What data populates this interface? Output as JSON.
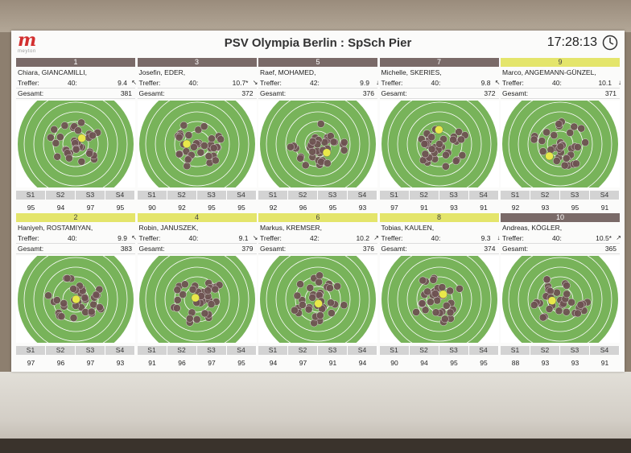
{
  "header": {
    "title": "PSV Olympia Berlin : SpSch Pier",
    "time": "17:28:13",
    "logo_letter": "m",
    "logo_text": "meyton"
  },
  "series_labels": [
    "S1",
    "S2",
    "S3",
    "S4"
  ],
  "hit_label": "Treffer:",
  "total_label": "Gesamt:",
  "panels": [
    {
      "lane": "1",
      "name": "Chiara, GIANCAMILLI,",
      "hits": "40:",
      "last": "9.4",
      "trend": "↖",
      "total": "381",
      "scores": [
        "95",
        "94",
        "97",
        "95"
      ],
      "highlight": false
    },
    {
      "lane": "3",
      "name": "Josefin, EDER,",
      "hits": "40:",
      "last": "10.7*",
      "trend": "↘",
      "total": "372",
      "scores": [
        "90",
        "92",
        "95",
        "95"
      ],
      "highlight": false
    },
    {
      "lane": "5",
      "name": "Raef, MOHAMED,",
      "hits": "42:",
      "last": "9.9",
      "trend": "↓",
      "total": "376",
      "scores": [
        "92",
        "96",
        "95",
        "93"
      ],
      "highlight": false
    },
    {
      "lane": "7",
      "name": "Michelle, SKERIES,",
      "hits": "40:",
      "last": "9.8",
      "trend": "↖",
      "total": "372",
      "scores": [
        "97",
        "91",
        "93",
        "91"
      ],
      "highlight": false
    },
    {
      "lane": "9",
      "name": "Marco, ANGEMANN-GÜNZEL,",
      "hits": "40:",
      "last": "10.1",
      "trend": "↓",
      "total": "371",
      "scores": [
        "92",
        "93",
        "95",
        "91"
      ],
      "highlight": true
    },
    {
      "lane": "2",
      "name": "Haniyeh, ROSTAMIYAN,",
      "hits": "40:",
      "last": "9.9",
      "trend": "↖",
      "total": "383",
      "scores": [
        "97",
        "96",
        "97",
        "93"
      ],
      "highlight": true
    },
    {
      "lane": "4",
      "name": "Robin, JANUSZEK,",
      "hits": "40:",
      "last": "9.1",
      "trend": "↘",
      "total": "379",
      "scores": [
        "91",
        "96",
        "97",
        "95"
      ],
      "highlight": true
    },
    {
      "lane": "6",
      "name": "Markus, KREMSER,",
      "hits": "42:",
      "last": "10.2",
      "trend": "↗",
      "total": "376",
      "scores": [
        "94",
        "97",
        "91",
        "94"
      ],
      "highlight": true
    },
    {
      "lane": "8",
      "name": "Tobias, KAULEN,",
      "hits": "40:",
      "last": "9.3",
      "trend": "↓",
      "total": "374",
      "scores": [
        "90",
        "94",
        "95",
        "95"
      ],
      "highlight": true
    },
    {
      "lane": "10",
      "name": "Andreas, KÖGLER,",
      "hits": "40:",
      "last": "10.5*",
      "trend": "↗",
      "total": "365",
      "scores": [
        "88",
        "93",
        "93",
        "91"
      ],
      "highlight": false
    }
  ],
  "colors": {
    "target_green": "#78b35a",
    "shot": "#6e5252",
    "last_shot": "#e8e84a",
    "hot_shot": "#d9473a",
    "lane_bar": "#7a6a68",
    "lane_highlight": "#e4e56b"
  }
}
